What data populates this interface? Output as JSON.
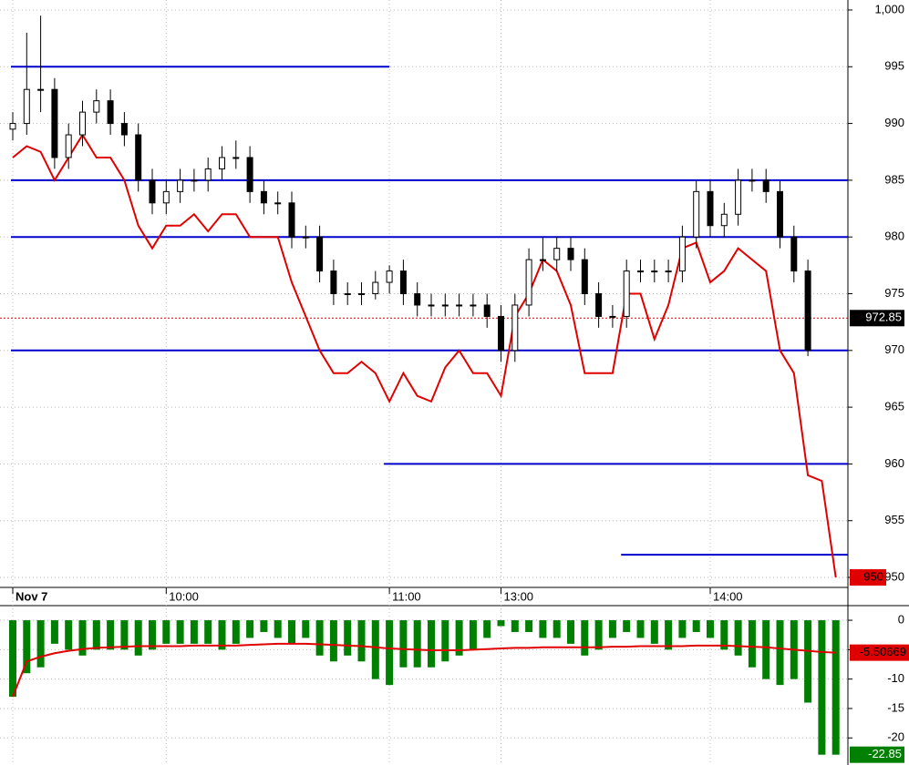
{
  "chart_data": [
    {
      "type": "candlestick",
      "categories": [
        "Nov 7",
        null,
        null,
        null,
        null,
        null,
        null,
        null,
        null,
        null,
        null,
        "10:00",
        null,
        null,
        null,
        null,
        null,
        null,
        null,
        null,
        null,
        null,
        null,
        null,
        null,
        null,
        null,
        "11:00",
        null,
        null,
        null,
        null,
        null,
        null,
        null,
        "13:00",
        null,
        null,
        null,
        null,
        null,
        null,
        null,
        null,
        null,
        null,
        null,
        null,
        null,
        null,
        "14:00",
        null,
        null,
        null,
        null,
        null,
        null,
        null,
        null,
        null
      ],
      "open": [
        989.5,
        990,
        993,
        993,
        987,
        989,
        991,
        992,
        990,
        989,
        985,
        983,
        984,
        985,
        985,
        986,
        987,
        987,
        984,
        983,
        983,
        980,
        980,
        977,
        975,
        975,
        975,
        976,
        977,
        975,
        974,
        974,
        974,
        974,
        974,
        973,
        970,
        974,
        978,
        978,
        979,
        978,
        975,
        973,
        973,
        977,
        977,
        977,
        977,
        980,
        984,
        981,
        982,
        985,
        985,
        984,
        980,
        977,
        null,
        null
      ],
      "high": [
        991,
        998,
        999.5,
        994,
        990,
        992,
        993,
        993,
        991,
        990,
        986,
        985,
        986,
        986,
        987,
        988,
        988.5,
        988,
        985,
        984,
        984,
        981,
        981,
        978,
        976,
        976,
        977,
        977.5,
        978,
        976,
        975,
        975,
        975,
        975,
        975,
        974,
        975,
        979,
        980,
        980,
        980,
        979,
        976,
        974,
        978,
        978,
        978,
        978,
        981,
        985,
        985,
        983,
        986,
        986,
        986,
        985,
        981,
        978,
        null,
        null
      ],
      "low": [
        988.5,
        989,
        991,
        986,
        986,
        988,
        990,
        989,
        988,
        984,
        982,
        982,
        983,
        984,
        984,
        985,
        986,
        983,
        982,
        982,
        979,
        979,
        976,
        974,
        974,
        974,
        974.5,
        975,
        974,
        973,
        973,
        973,
        973,
        973,
        972,
        969,
        969,
        973,
        977,
        977,
        977,
        974,
        972,
        972,
        972,
        976,
        976,
        976,
        976,
        979,
        980,
        980,
        981,
        984,
        983,
        979,
        976,
        969.5,
        null,
        null
      ],
      "close": [
        990,
        993,
        993,
        987,
        989,
        991,
        992,
        990,
        989,
        985,
        983,
        984,
        985,
        985,
        986,
        987,
        987,
        984,
        983,
        983,
        980,
        980,
        977,
        975,
        975,
        975,
        976,
        977,
        975,
        974,
        974,
        974,
        974,
        974,
        973,
        970,
        974,
        978,
        978,
        979,
        978,
        975,
        973,
        973,
        977,
        977,
        977,
        977,
        980,
        984,
        981,
        982,
        985,
        985,
        984,
        980,
        977,
        970,
        null,
        null
      ],
      "line": {
        "color": "#e00000",
        "values": [
          987,
          988,
          987.5,
          985,
          987,
          989,
          987,
          987,
          985,
          981,
          979,
          981,
          981,
          982,
          980.5,
          982,
          982,
          980,
          980,
          980,
          976,
          973,
          970,
          968,
          968,
          969,
          968,
          965.5,
          968,
          966,
          965.5,
          968.5,
          970,
          968,
          968,
          966,
          973,
          975,
          978,
          977,
          974,
          968,
          968,
          968,
          975,
          975,
          971,
          974,
          979,
          979.5,
          976,
          977,
          979,
          978,
          977,
          970,
          968,
          959,
          958.5,
          950
        ]
      },
      "hlines": {
        "color": "#0000cc",
        "values": [
          995,
          985,
          980,
          970,
          960,
          952
        ]
      },
      "last_price": 972.85,
      "ylim": [
        949.12,
        1000.88
      ],
      "yticks": [
        950,
        955,
        960,
        965,
        970,
        975,
        980,
        985,
        990,
        995,
        {
          "value": 1000,
          "label": "1,000"
        }
      ],
      "grid": true
    },
    {
      "type": "bar",
      "values": [
        -13,
        -9,
        -8,
        -4,
        -5,
        -6,
        -5,
        -5,
        -5,
        -6,
        -5,
        -4,
        -4,
        -4,
        -4,
        -5,
        -4,
        -3,
        -2,
        -3,
        -4,
        -3,
        -6,
        -7,
        -6,
        -7,
        -10,
        -11,
        -8,
        -8,
        -8,
        -7,
        -6,
        -5,
        -3,
        -1,
        -2,
        -2,
        -3,
        -3,
        -4,
        -6,
        -5,
        -3,
        -2,
        -3,
        -4,
        -5,
        -3,
        -2,
        -3,
        -5,
        -6,
        -8,
        -10,
        -11,
        -10,
        -14,
        -22.85,
        -22.85
      ],
      "color": "#008000",
      "line": {
        "color": "#e00000",
        "values": [
          -13,
          -7,
          -6.2,
          -5.6,
          -5.2,
          -4.9,
          -4.7,
          -4.6,
          -4.5,
          -4.4,
          -4.4,
          -4.4,
          -4.4,
          -4.3,
          -4.3,
          -4.3,
          -4.3,
          -4.2,
          -4.1,
          -4.0,
          -4.0,
          -4.0,
          -4.1,
          -4.2,
          -4.3,
          -4.4,
          -4.6,
          -4.8,
          -4.9,
          -5.0,
          -5.1,
          -5.1,
          -5.1,
          -5.0,
          -4.9,
          -4.8,
          -4.7,
          -4.7,
          -4.6,
          -4.6,
          -4.6,
          -4.6,
          -4.6,
          -4.5,
          -4.5,
          -4.4,
          -4.4,
          -4.4,
          -4.4,
          -4.3,
          -4.3,
          -4.3,
          -4.4,
          -4.5,
          -4.6,
          -4.8,
          -5.0,
          -5.2,
          -5.4,
          -5.50669
        ]
      },
      "ylim": [
        -24.6,
        1.4
      ],
      "yticks": [
        0,
        -5,
        -10,
        -15,
        -20
      ],
      "grid": true
    }
  ]
}
